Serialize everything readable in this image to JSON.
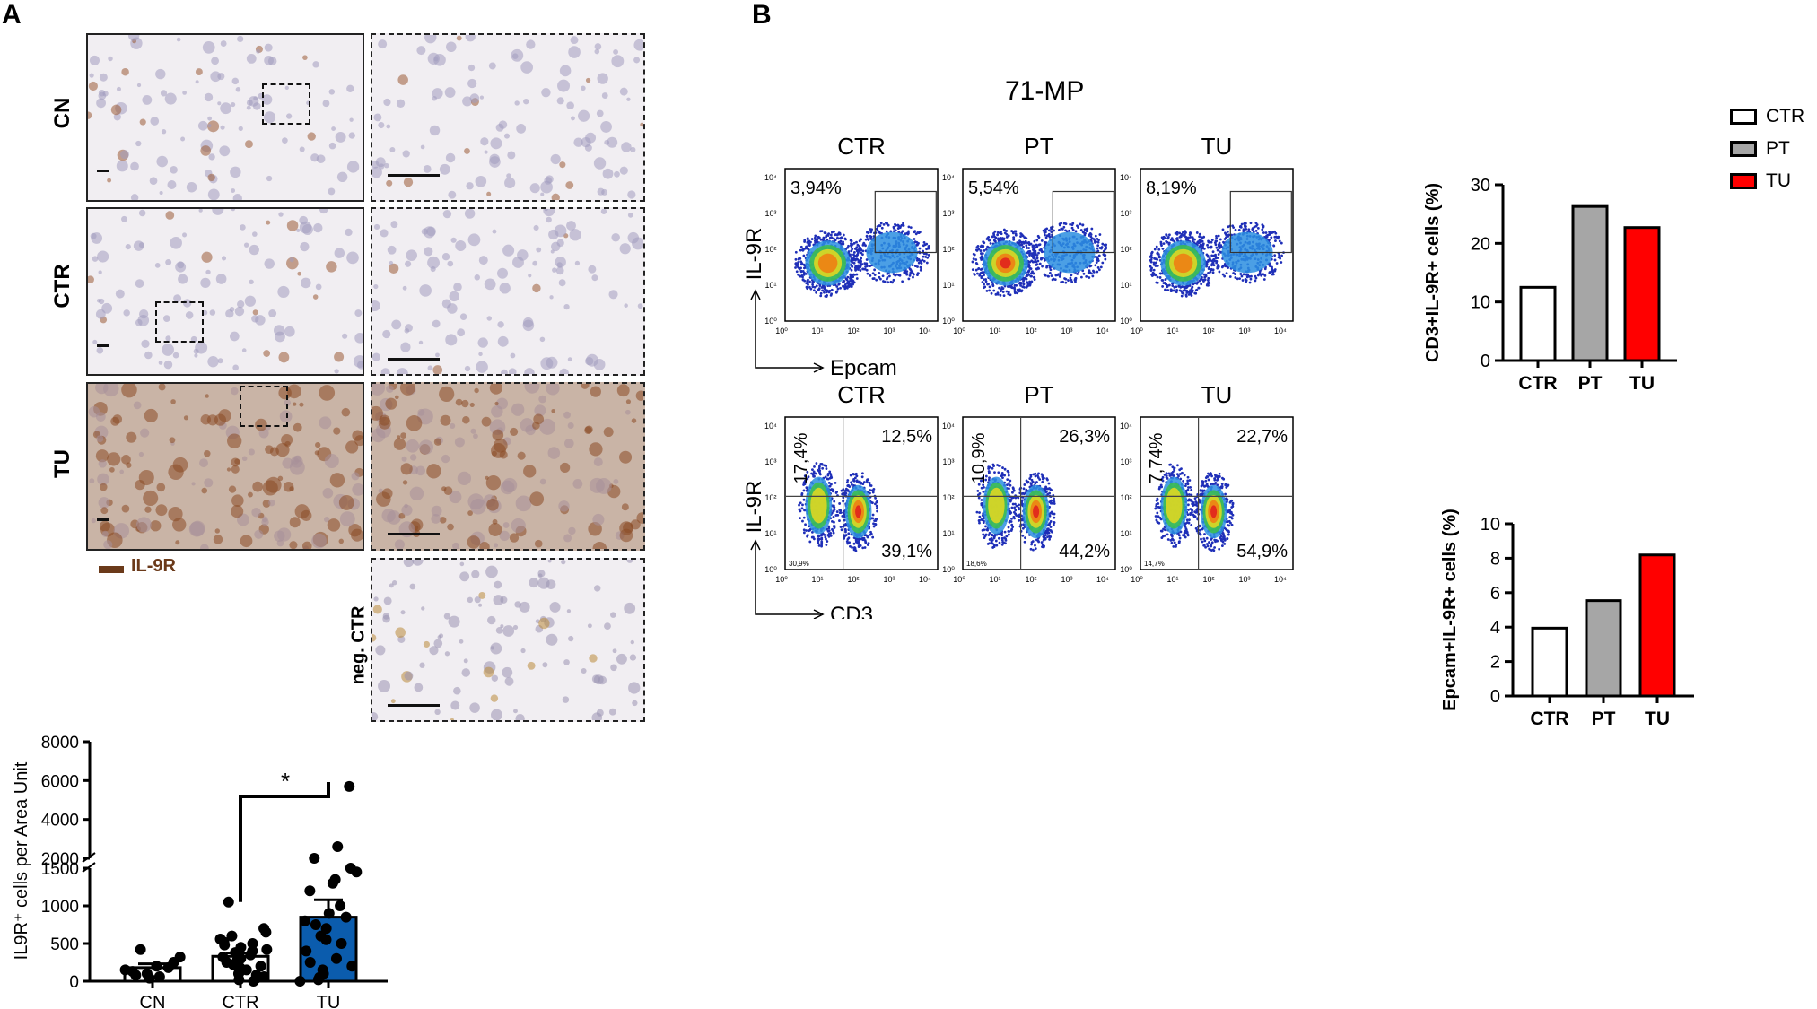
{
  "panel_letters": {
    "a": "A",
    "b": "B"
  },
  "ihc": {
    "rows": [
      {
        "label": "CN",
        "tissue": "normal"
      },
      {
        "label": "CTR",
        "tissue": "normal"
      },
      {
        "label": "TU",
        "tissue": "tumor"
      }
    ],
    "neg_label": "neg. CTR",
    "legend_label": "IL-9R",
    "legend_color": "#6b3a1a"
  },
  "flow": {
    "sample_title": "71-MP",
    "top_row": {
      "columns": [
        "CTR",
        "PT",
        "TU"
      ],
      "gate_percent": [
        "3,94%",
        "5,54%",
        "8,19%"
      ],
      "y_axis": "IL-9R",
      "x_axis": "Epcam"
    },
    "bottom_row": {
      "columns": [
        "CTR",
        "PT",
        "TU"
      ],
      "quadrants": [
        {
          "ul": "17,4%",
          "ur": "12,5%",
          "lr": "39,1%",
          "ll_small": "30,9%"
        },
        {
          "ul": "10,9%",
          "ur": "26,3%",
          "lr": "44,2%",
          "ll_small": "18,6%"
        },
        {
          "ul": "7,74%",
          "ur": "22,7%",
          "lr": "54,9%",
          "ll_small": "14,7%"
        }
      ],
      "y_axis": "IL-9R",
      "x_axis": "CD3"
    },
    "tick_labels": [
      "10⁰",
      "10¹",
      "10²",
      "10³",
      "10⁴"
    ]
  },
  "legend": {
    "items": [
      {
        "label": "CTR",
        "color": "#ffffff"
      },
      {
        "label": "PT",
        "color": "#a6a6a6"
      },
      {
        "label": "TU",
        "color": "#ff0000"
      }
    ]
  },
  "chart_data": [
    {
      "type": "bar",
      "id": "cd3",
      "categories": [
        "CTR",
        "PT",
        "TU"
      ],
      "values": [
        12.5,
        26.3,
        22.7
      ],
      "colors": [
        "#ffffff",
        "#a6a6a6",
        "#ff0000"
      ],
      "ylabel": "CD3+IL-9R+ cells (%)",
      "ylim": [
        0,
        30
      ],
      "yticks": [
        0,
        10,
        20,
        30
      ]
    },
    {
      "type": "bar",
      "id": "epcam",
      "categories": [
        "CTR",
        "PT",
        "TU"
      ],
      "values": [
        3.94,
        5.54,
        8.19
      ],
      "colors": [
        "#ffffff",
        "#a6a6a6",
        "#ff0000"
      ],
      "ylabel": "Epcam+IL-9R+ cells (%)",
      "ylim": [
        0,
        10
      ],
      "yticks": [
        0,
        2,
        4,
        6,
        8,
        10
      ]
    },
    {
      "type": "bar",
      "id": "il9r",
      "categories": [
        "CN",
        "CTR",
        "TU"
      ],
      "values": [
        180,
        330,
        850
      ],
      "errors": [
        50,
        45,
        230
      ],
      "colors": [
        "#ffffff",
        "#ffffff",
        "#0b5cad"
      ],
      "ylabel": "IL9R⁺ cells per Area Unit",
      "lower_ticks": [
        0,
        500,
        1000,
        1500
      ],
      "upper_ticks": [
        2000,
        4000,
        6000,
        8000
      ],
      "significance": "*",
      "points": [
        [
          40,
          60,
          80,
          100,
          130,
          150,
          180,
          200,
          250,
          320,
          420
        ],
        [
          0,
          20,
          40,
          60,
          80,
          100,
          120,
          150,
          180,
          200,
          220,
          250,
          280,
          300,
          320,
          350,
          380,
          400,
          420,
          450,
          480,
          500,
          520,
          560,
          600,
          650,
          700,
          1050
        ],
        [
          0,
          20,
          50,
          100,
          150,
          200,
          250,
          300,
          400,
          500,
          550,
          600,
          700,
          750,
          800,
          850,
          900,
          1000,
          1200,
          1300,
          1350,
          1450,
          1500,
          2000,
          2600,
          5700
        ]
      ]
    }
  ]
}
